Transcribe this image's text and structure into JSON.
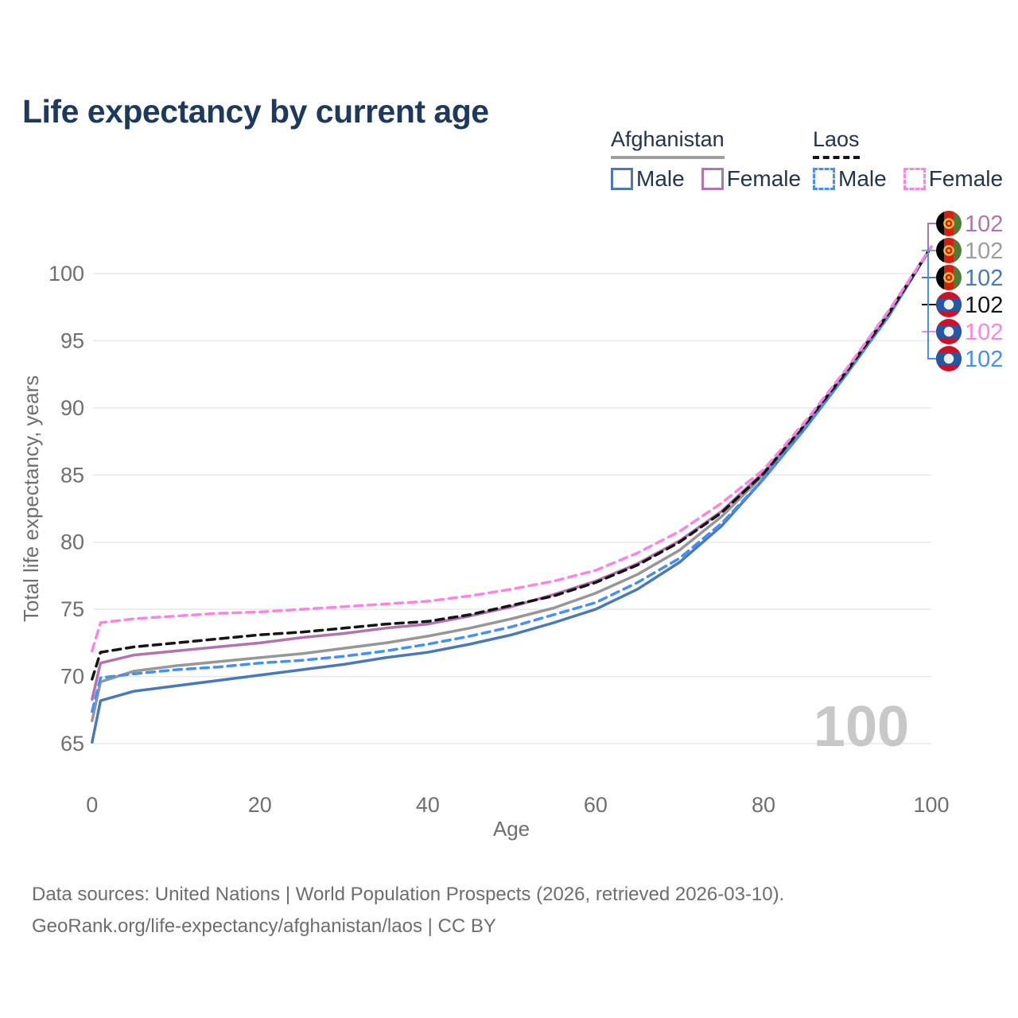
{
  "title": "Life expectancy by current age",
  "legend": {
    "afghanistan": {
      "name": "Afghanistan",
      "underline": {
        "style": "solid",
        "color": "#9f9f9f"
      },
      "items": [
        {
          "label": "Male",
          "color": "#4a79b8",
          "dashed": false
        },
        {
          "label": "Female",
          "color": "#b273ae",
          "dashed": false
        }
      ]
    },
    "laos": {
      "name": "Laos",
      "underline": {
        "style": "dashed",
        "color": "#141414"
      },
      "items": [
        {
          "label": "Male",
          "color": "#4590f7",
          "dashed": true
        },
        {
          "label": "Female",
          "color": "#ff84e2",
          "dashed": true
        }
      ]
    }
  },
  "chart_data": {
    "type": "line",
    "title": "Life expectancy by current age",
    "xlabel": "Age",
    "ylabel": "Total life expectancy, years",
    "xlim": [
      0,
      100
    ],
    "ylim": [
      65,
      102
    ],
    "xticks": [
      0,
      20,
      40,
      60,
      80,
      100
    ],
    "yticks": [
      65,
      70,
      75,
      80,
      85,
      90,
      95,
      100
    ],
    "grid": "horizontal",
    "legend_position": "top-right",
    "age_watermark": "100",
    "x": [
      0,
      1,
      5,
      10,
      15,
      20,
      25,
      30,
      35,
      40,
      45,
      50,
      55,
      60,
      65,
      70,
      75,
      80,
      85,
      90,
      95,
      100
    ],
    "series": [
      {
        "name": "Afghanistan Female",
        "country": "Afghanistan",
        "sex": "Female",
        "color": "#b273ae",
        "dash": false,
        "z": 4,
        "flag": "afghanistan",
        "end_value_label": "102",
        "label_color": "#b273ae",
        "values": [
          68.3,
          71.0,
          71.6,
          71.9,
          72.2,
          72.5,
          72.9,
          73.2,
          73.6,
          73.9,
          74.5,
          75.2,
          76.1,
          77.1,
          78.4,
          80.1,
          82.3,
          85.2,
          88.8,
          92.9,
          97.2,
          102.0
        ]
      },
      {
        "name": "Afghanistan",
        "country": "Afghanistan",
        "sex": "Both",
        "color": "#979797",
        "dash": false,
        "z": 1,
        "flag": "afghanistan",
        "end_value_label": "102",
        "label_color": "#9e9e9e",
        "values": [
          66.7,
          69.6,
          70.4,
          70.8,
          71.1,
          71.4,
          71.7,
          72.1,
          72.5,
          73.0,
          73.6,
          74.3,
          75.1,
          76.2,
          77.6,
          79.4,
          81.9,
          85.0,
          88.7,
          92.8,
          97.1,
          102.0
        ]
      },
      {
        "name": "Afghanistan Male",
        "country": "Afghanistan",
        "sex": "Male",
        "color": "#4a79b8",
        "dash": false,
        "z": 2,
        "flag": "afghanistan",
        "end_value_label": "102",
        "label_color": "#4a79b8",
        "values": [
          65.1,
          68.2,
          68.9,
          69.3,
          69.7,
          70.1,
          70.5,
          70.9,
          71.4,
          71.8,
          72.4,
          73.1,
          74.0,
          75.0,
          76.5,
          78.5,
          81.2,
          84.7,
          88.5,
          92.6,
          96.9,
          102.0
        ]
      },
      {
        "name": "Laos",
        "country": "Laos",
        "sex": "Both",
        "color": "#141414",
        "dash": true,
        "z": 5,
        "flag": "laos",
        "end_value_label": "102",
        "label_color": "#141414",
        "values": [
          69.8,
          71.8,
          72.2,
          72.5,
          72.8,
          73.1,
          73.3,
          73.6,
          73.9,
          74.1,
          74.6,
          75.3,
          76.0,
          77.0,
          78.3,
          80.0,
          82.2,
          85.1,
          88.8,
          92.8,
          97.1,
          102.0
        ]
      },
      {
        "name": "Laos Female",
        "country": "Laos",
        "sex": "Female",
        "color": "#ff84e2",
        "dash": true,
        "z": 6,
        "flag": "laos",
        "end_value_label": "102",
        "label_color": "#ff84e2",
        "values": [
          71.9,
          74.0,
          74.3,
          74.5,
          74.7,
          74.8,
          75.0,
          75.2,
          75.4,
          75.6,
          76.0,
          76.5,
          77.1,
          77.9,
          79.2,
          80.8,
          82.9,
          85.4,
          89.0,
          93.0,
          97.3,
          102.0
        ]
      },
      {
        "name": "Laos Male",
        "country": "Laos",
        "sex": "Male",
        "color": "#4590f7",
        "dash": true,
        "z": 3,
        "flag": "laos",
        "end_value_label": "102",
        "label_color": "#4590f7",
        "values": [
          67.4,
          69.9,
          70.2,
          70.5,
          70.7,
          71.0,
          71.2,
          71.5,
          71.9,
          72.4,
          73.0,
          73.7,
          74.6,
          75.5,
          77.0,
          78.8,
          81.4,
          84.7,
          88.5,
          92.6,
          96.9,
          102.0
        ]
      }
    ]
  },
  "footer": {
    "line1": "Data sources: United Nations | World Population Prospects (2026, retrieved 2026-03-10).",
    "line2": "GeoRank.org/life-expectancy/afghanistan/laos | CC BY"
  }
}
